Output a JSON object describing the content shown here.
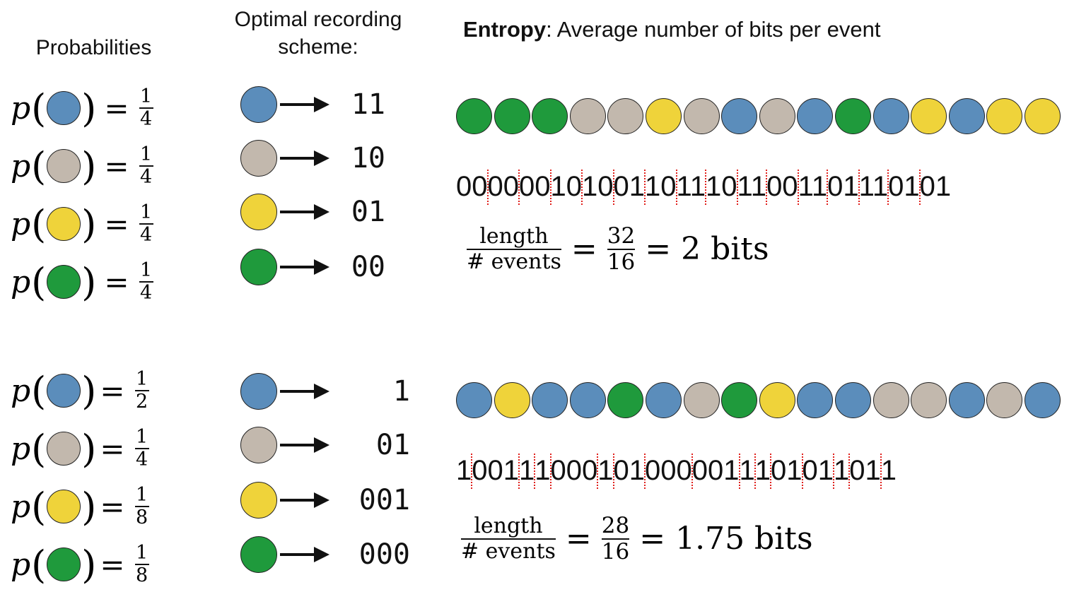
{
  "headers": {
    "probabilities": "Probabilities",
    "scheme": "Optimal recording scheme:",
    "entropy_bold": "Entropy",
    "entropy_rest": ": Average number of bits per event"
  },
  "colors": {
    "blue": "#5b8dbb",
    "gray": "#c2b8ad",
    "yellow": "#efd33a",
    "green": "#1f9a3c"
  },
  "sections": [
    {
      "probs": [
        {
          "color": "blue",
          "num": "1",
          "den": "4"
        },
        {
          "color": "gray",
          "num": "1",
          "den": "4"
        },
        {
          "color": "yellow",
          "num": "1",
          "den": "4"
        },
        {
          "color": "green",
          "num": "1",
          "den": "4"
        }
      ],
      "codes": [
        {
          "color": "blue",
          "code": "11"
        },
        {
          "color": "gray",
          "code": "10"
        },
        {
          "color": "yellow",
          "code": "01"
        },
        {
          "color": "green",
          "code": "00"
        }
      ],
      "sequence": [
        "green",
        "green",
        "green",
        "gray",
        "gray",
        "yellow",
        "gray",
        "blue",
        "gray",
        "blue",
        "green",
        "blue",
        "yellow",
        "blue",
        "yellow",
        "yellow"
      ],
      "formula": {
        "num": "length",
        "den": "# events",
        "frac_num": "32",
        "frac_den": "16",
        "result": "= 2 bits"
      }
    },
    {
      "probs": [
        {
          "color": "blue",
          "num": "1",
          "den": "2"
        },
        {
          "color": "gray",
          "num": "1",
          "den": "4"
        },
        {
          "color": "yellow",
          "num": "1",
          "den": "8"
        },
        {
          "color": "green",
          "num": "1",
          "den": "8"
        }
      ],
      "codes": [
        {
          "color": "blue",
          "code": "1"
        },
        {
          "color": "gray",
          "code": "01"
        },
        {
          "color": "yellow",
          "code": "001"
        },
        {
          "color": "green",
          "code": "000"
        }
      ],
      "sequence": [
        "blue",
        "yellow",
        "blue",
        "blue",
        "green",
        "blue",
        "gray",
        "green",
        "yellow",
        "blue",
        "blue",
        "gray",
        "gray",
        "blue",
        "gray",
        "blue"
      ],
      "formula": {
        "num": "length",
        "den": "# events",
        "frac_num": "28",
        "frac_den": "16",
        "result": "= 1.75 bits"
      }
    }
  ],
  "labels": {
    "p": "p",
    "eq": "="
  }
}
